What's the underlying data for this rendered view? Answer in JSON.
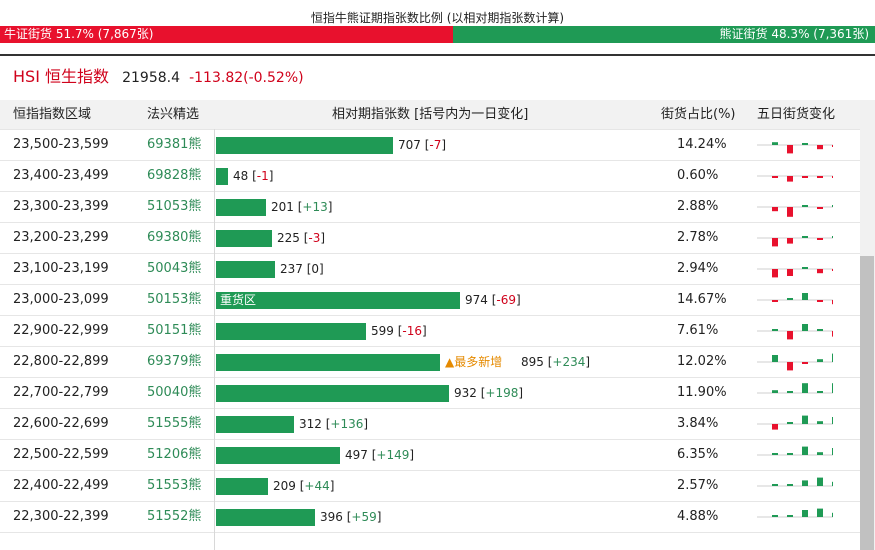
{
  "ratio": {
    "title": "恒指牛熊证期指张数比例 (以相对期指张数计算)",
    "bull_label": "牛证街货 51.7% (7,867张)",
    "bear_label": "熊证街货 48.3% (7,361张)",
    "bull_share": 0.517,
    "bull_color": "#e8112d",
    "bear_color": "#1f9a55"
  },
  "hsi": {
    "name": "HSI 恒生指数",
    "price": "21958.4",
    "change": "-113.82(-0.52%)"
  },
  "columns": {
    "range": "恒指指数区域",
    "pick": "法兴精选",
    "contracts": "相对期指张数 [括号内为一日变化]",
    "share": "街货占比(%)",
    "five_day": "五日街货变化"
  },
  "rows": [
    {
      "range": "23,500-23,599",
      "code": "69381熊",
      "value": 707,
      "count": "707",
      "change": "-7",
      "sign": "neg",
      "share": "14.24%",
      "tag": "",
      "hot": "",
      "mini": [
        0.2,
        -0.6,
        0.1,
        -0.3,
        -0.1
      ]
    },
    {
      "range": "23,400-23,499",
      "code": "69828熊",
      "value": 48,
      "count": "48",
      "change": "-1",
      "sign": "neg",
      "share": "0.60%",
      "tag": "",
      "hot": "",
      "mini": [
        -0.1,
        -0.4,
        -0.1,
        -0.1,
        -0.1
      ]
    },
    {
      "range": "23,300-23,399",
      "code": "51053熊",
      "value": 201,
      "count": "201",
      "change": "+13",
      "sign": "pos",
      "share": "2.88%",
      "tag": "",
      "hot": "",
      "mini": [
        -0.3,
        -0.7,
        0.1,
        -0.1,
        0.1
      ]
    },
    {
      "range": "23,200-23,299",
      "code": "69380熊",
      "value": 225,
      "count": "225",
      "change": "-3",
      "sign": "neg",
      "share": "2.78%",
      "tag": "",
      "hot": "",
      "mini": [
        -0.6,
        -0.4,
        0.1,
        -0.1,
        0.05
      ]
    },
    {
      "range": "23,100-23,199",
      "code": "50043熊",
      "value": 237,
      "count": "237",
      "change": "0",
      "sign": "zero",
      "share": "2.94%",
      "tag": "",
      "hot": "",
      "mini": [
        -0.6,
        -0.5,
        0.05,
        -0.3,
        -0.05
      ]
    },
    {
      "range": "23,000-23,099",
      "code": "50153熊",
      "value": 974,
      "count": "974",
      "change": "-69",
      "sign": "neg",
      "share": "14.67%",
      "tag": "重货区",
      "hot": "",
      "mini": [
        -0.1,
        0.05,
        0.5,
        -0.1,
        -0.3
      ]
    },
    {
      "range": "22,900-22,999",
      "code": "50151熊",
      "value": 599,
      "count": "599",
      "change": "-16",
      "sign": "neg",
      "share": "7.61%",
      "tag": "",
      "hot": "",
      "mini": [
        0.1,
        -0.6,
        0.5,
        0.1,
        -0.4
      ]
    },
    {
      "range": "22,800-22,899",
      "code": "69379熊",
      "value": 895,
      "count": "895",
      "change": "+234",
      "sign": "pos",
      "share": "12.02%",
      "tag": "",
      "hot": "▲最多新增",
      "mini": [
        0.5,
        -0.6,
        -0.1,
        0.2,
        0.6
      ]
    },
    {
      "range": "22,700-22,799",
      "code": "50040熊",
      "value": 932,
      "count": "932",
      "change": "+198",
      "sign": "pos",
      "share": "11.90%",
      "tag": "",
      "hot": "",
      "mini": [
        0.2,
        0.1,
        0.7,
        0.1,
        0.7
      ]
    },
    {
      "range": "22,600-22,699",
      "code": "51555熊",
      "value": 312,
      "count": "312",
      "change": "+136",
      "sign": "pos",
      "share": "3.84%",
      "tag": "",
      "hot": "",
      "mini": [
        -0.4,
        0.1,
        0.6,
        0.2,
        0.5
      ]
    },
    {
      "range": "22,500-22,599",
      "code": "51206熊",
      "value": 497,
      "count": "497",
      "change": "+149",
      "sign": "pos",
      "share": "6.35%",
      "tag": "",
      "hot": "",
      "mini": [
        0.05,
        0.1,
        0.6,
        0.2,
        0.5
      ]
    },
    {
      "range": "22,400-22,499",
      "code": "51553熊",
      "value": 209,
      "count": "209",
      "change": "+44",
      "sign": "pos",
      "share": "2.57%",
      "tag": "",
      "hot": "",
      "mini": [
        0.05,
        0.05,
        0.4,
        0.6,
        0.3
      ]
    },
    {
      "range": "22,300-22,399",
      "code": "51552熊",
      "value": 396,
      "count": "396",
      "change": "+59",
      "sign": "pos",
      "share": "4.88%",
      "tag": "",
      "hot": "",
      "mini": [
        0.05,
        0.05,
        0.5,
        0.6,
        0.3
      ]
    }
  ]
}
